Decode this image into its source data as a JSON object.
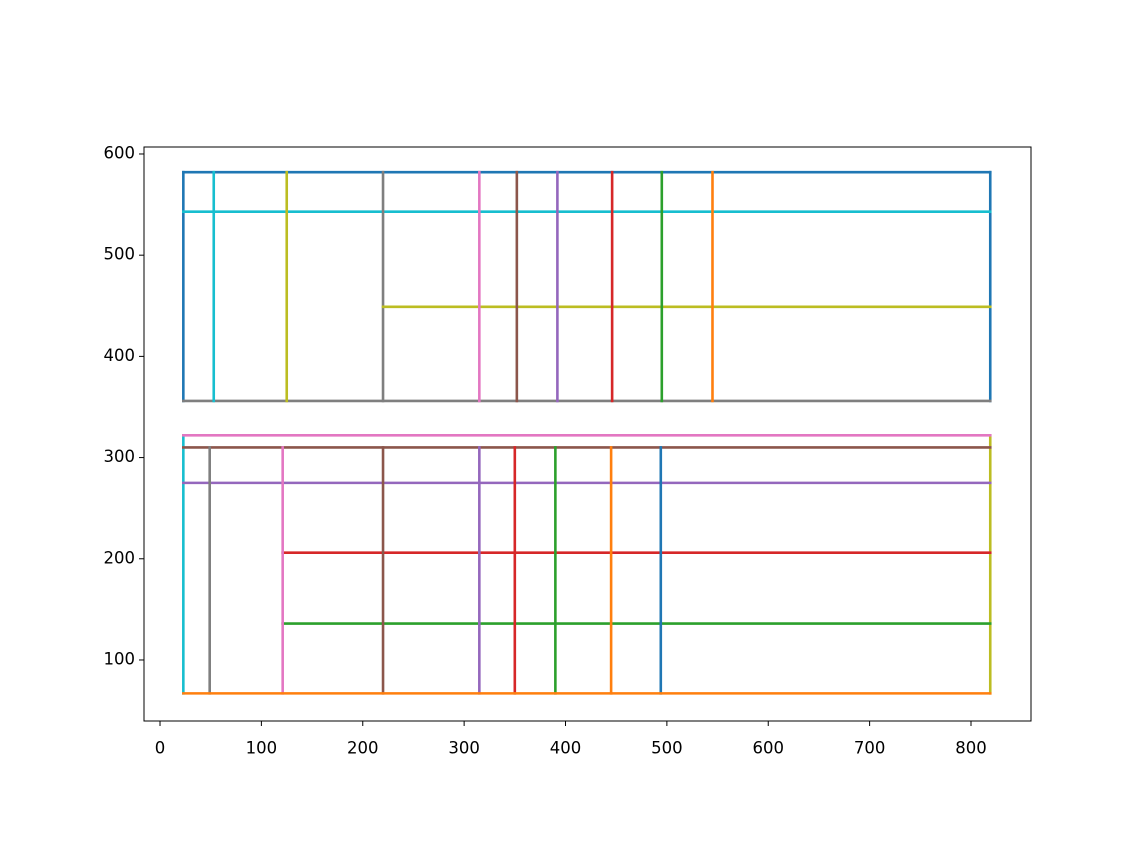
{
  "chart_data": {
    "type": "line",
    "grid": false,
    "xlim": [
      -15.8,
      859.2
    ],
    "ylim": [
      39.7,
      606.9
    ],
    "xticks": [
      0,
      100,
      200,
      300,
      400,
      500,
      600,
      700,
      800
    ],
    "yticks": [
      100,
      200,
      300,
      400,
      500,
      600
    ],
    "series": [
      {
        "color": "#1f77b4",
        "x": [
          23,
          819
        ],
        "y": [
          582,
          582
        ]
      },
      {
        "color": "#1f77b4",
        "x": [
          23,
          23
        ],
        "y": [
          356,
          582
        ]
      },
      {
        "color": "#1f77b4",
        "x": [
          819,
          819
        ],
        "y": [
          356,
          582
        ]
      },
      {
        "color": "#7f7f7f",
        "x": [
          23,
          819
        ],
        "y": [
          356,
          356
        ]
      },
      {
        "color": "#17becf",
        "x": [
          23,
          819
        ],
        "y": [
          543,
          543
        ]
      },
      {
        "color": "#17becf",
        "x": [
          53,
          53
        ],
        "y": [
          356,
          582
        ]
      },
      {
        "color": "#bcbd22",
        "x": [
          125,
          125
        ],
        "y": [
          356,
          582
        ]
      },
      {
        "color": "#7f7f7f",
        "x": [
          220,
          220
        ],
        "y": [
          356,
          582
        ]
      },
      {
        "color": "#bcbd22",
        "x": [
          220,
          819
        ],
        "y": [
          449,
          449
        ]
      },
      {
        "color": "#e377c2",
        "x": [
          315,
          315
        ],
        "y": [
          356,
          582
        ]
      },
      {
        "color": "#8c564b",
        "x": [
          352,
          352
        ],
        "y": [
          356,
          582
        ]
      },
      {
        "color": "#9467bd",
        "x": [
          392,
          392
        ],
        "y": [
          356,
          582
        ]
      },
      {
        "color": "#d62728",
        "x": [
          446,
          446
        ],
        "y": [
          356,
          582
        ]
      },
      {
        "color": "#2ca02c",
        "x": [
          495,
          495
        ],
        "y": [
          356,
          582
        ]
      },
      {
        "color": "#ff7f0e",
        "x": [
          545,
          545
        ],
        "y": [
          356,
          582
        ]
      },
      {
        "color": "#17becf",
        "x": [
          23,
          23
        ],
        "y": [
          67,
          322
        ]
      },
      {
        "color": "#bcbd22",
        "x": [
          819,
          819
        ],
        "y": [
          67,
          322
        ]
      },
      {
        "color": "#e377c2",
        "x": [
          23,
          819
        ],
        "y": [
          322,
          322
        ]
      },
      {
        "color": "#8c564b",
        "x": [
          23,
          819
        ],
        "y": [
          310,
          310
        ]
      },
      {
        "color": "#9467bd",
        "x": [
          23,
          819
        ],
        "y": [
          275,
          275
        ]
      },
      {
        "color": "#d62728",
        "x": [
          121,
          819
        ],
        "y": [
          206,
          206
        ]
      },
      {
        "color": "#2ca02c",
        "x": [
          121,
          819
        ],
        "y": [
          136,
          136
        ]
      },
      {
        "color": "#7f7f7f",
        "x": [
          49,
          49
        ],
        "y": [
          67,
          310
        ]
      },
      {
        "color": "#e377c2",
        "x": [
          121,
          121
        ],
        "y": [
          67,
          310
        ]
      },
      {
        "color": "#8c564b",
        "x": [
          220,
          220
        ],
        "y": [
          67,
          310
        ]
      },
      {
        "color": "#9467bd",
        "x": [
          315,
          315
        ],
        "y": [
          67,
          310
        ]
      },
      {
        "color": "#d62728",
        "x": [
          350,
          350
        ],
        "y": [
          67,
          310
        ]
      },
      {
        "color": "#2ca02c",
        "x": [
          390,
          390
        ],
        "y": [
          67,
          310
        ]
      },
      {
        "color": "#ff7f0e",
        "x": [
          445,
          445
        ],
        "y": [
          67,
          310
        ]
      },
      {
        "color": "#1f77b4",
        "x": [
          494,
          494
        ],
        "y": [
          67,
          310
        ]
      },
      {
        "color": "#ff7f0e",
        "x": [
          23,
          819
        ],
        "y": [
          67,
          67
        ]
      }
    ]
  }
}
